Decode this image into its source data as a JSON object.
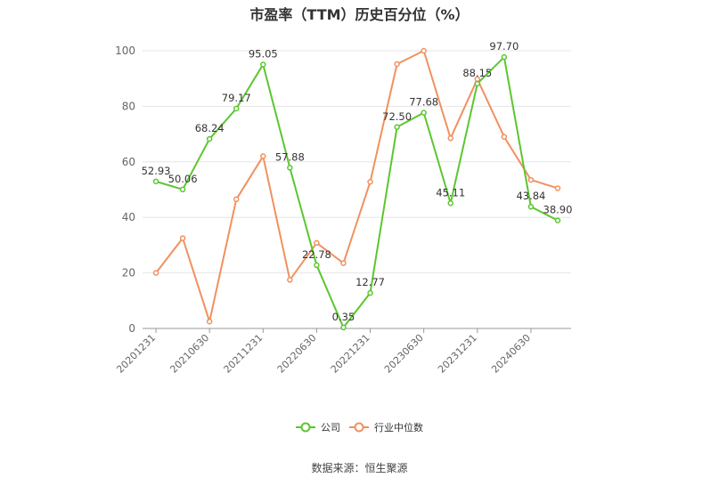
{
  "chart_data": {
    "type": "line",
    "title": "市盈率（TTM）历史百分位（%）",
    "source": "数据来源：恒生聚源",
    "ylim": [
      0,
      100
    ],
    "yticks": [
      0,
      20,
      40,
      60,
      80,
      100
    ],
    "grid": true,
    "legend_position": "bottom-center",
    "x": [
      "20201231",
      "20210331",
      "20210630",
      "20210930",
      "20211231",
      "20220331",
      "20220630",
      "20220930",
      "20221231",
      "20230331",
      "20230630",
      "20230930",
      "20231231",
      "20240331",
      "20240630",
      "20240930"
    ],
    "x_tick_labels": [
      "20201231",
      "20210630",
      "20211231",
      "20220630",
      "20221231",
      "20230630",
      "20231231",
      "20240630"
    ],
    "series": [
      {
        "name": "公司",
        "color": "#5cc630",
        "values": [
          52.93,
          50.06,
          68.24,
          79.17,
          95.05,
          57.88,
          22.78,
          0.35,
          12.77,
          72.5,
          77.68,
          45.11,
          88.15,
          97.7,
          43.84,
          38.9
        ],
        "labels": [
          "52.93",
          "50.06",
          "68.24",
          "79.17",
          "95.05",
          "57.88",
          "22.78",
          "0.35",
          "12.77",
          "72.50",
          "77.68",
          "45.11",
          "88.15",
          "97.70",
          "43.84",
          "38.90"
        ]
      },
      {
        "name": "行业中位数",
        "color": "#f0915f",
        "values": [
          20.0,
          32.5,
          2.5,
          46.5,
          62.0,
          17.5,
          30.8,
          23.5,
          52.8,
          95.2,
          100.0,
          68.5,
          89.8,
          69.0,
          53.5,
          50.5
        ]
      }
    ]
  }
}
